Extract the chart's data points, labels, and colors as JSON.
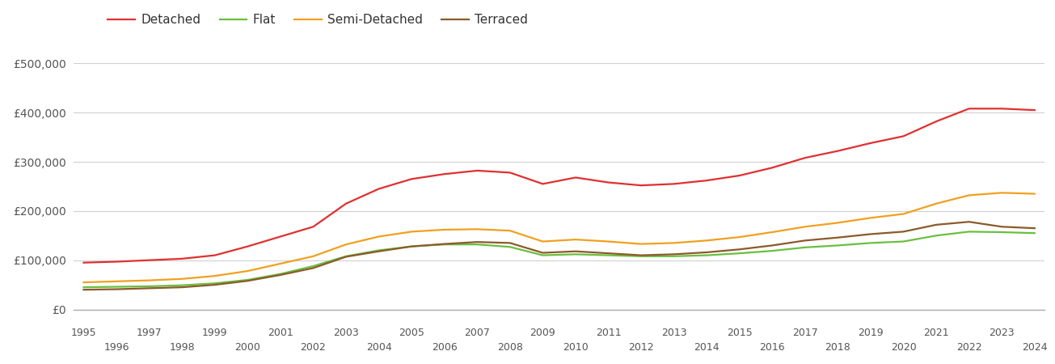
{
  "years": [
    1995,
    1996,
    1997,
    1998,
    1999,
    2000,
    2001,
    2002,
    2003,
    2004,
    2005,
    2006,
    2007,
    2008,
    2009,
    2010,
    2011,
    2012,
    2013,
    2014,
    2015,
    2016,
    2017,
    2018,
    2019,
    2020,
    2021,
    2022,
    2023,
    2024
  ],
  "detached": [
    95000,
    97000,
    100000,
    103000,
    110000,
    128000,
    148000,
    168000,
    215000,
    245000,
    265000,
    275000,
    282000,
    278000,
    255000,
    268000,
    258000,
    252000,
    255000,
    262000,
    272000,
    288000,
    308000,
    322000,
    338000,
    352000,
    382000,
    408000,
    408000,
    405000
  ],
  "flat": [
    45000,
    46000,
    47000,
    49000,
    53000,
    60000,
    72000,
    88000,
    108000,
    120000,
    128000,
    132000,
    132000,
    127000,
    110000,
    112000,
    110000,
    108000,
    108000,
    110000,
    114000,
    119000,
    126000,
    130000,
    135000,
    138000,
    150000,
    158000,
    157000,
    155000
  ],
  "semi_detached": [
    55000,
    57000,
    59000,
    62000,
    68000,
    78000,
    93000,
    108000,
    132000,
    148000,
    158000,
    162000,
    163000,
    160000,
    138000,
    142000,
    138000,
    133000,
    135000,
    140000,
    147000,
    157000,
    168000,
    176000,
    186000,
    194000,
    215000,
    232000,
    237000,
    235000
  ],
  "terraced": [
    40000,
    41000,
    43000,
    45000,
    50000,
    58000,
    70000,
    84000,
    107000,
    118000,
    128000,
    133000,
    137000,
    135000,
    115000,
    118000,
    114000,
    110000,
    112000,
    116000,
    122000,
    130000,
    140000,
    146000,
    153000,
    158000,
    172000,
    178000,
    168000,
    165000
  ],
  "colors": {
    "detached": "#e03030",
    "flat": "#6abf40",
    "semi_detached": "#f0a020",
    "terraced": "#8B5A2B"
  },
  "ylim": [
    0,
    540000
  ],
  "yticks": [
    0,
    100000,
    200000,
    300000,
    400000,
    500000
  ],
  "ytick_labels": [
    "£0",
    "£100,000",
    "£200,000",
    "£300,000",
    "£400,000",
    "£500,000"
  ],
  "background_color": "#ffffff",
  "grid_color": "#d0d0d0"
}
